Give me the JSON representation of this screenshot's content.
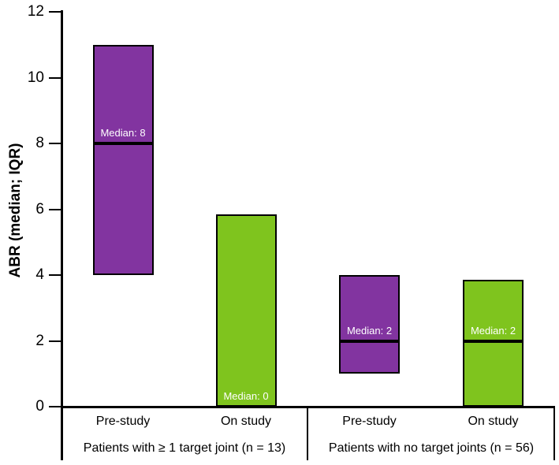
{
  "chart_data": {
    "type": "bar",
    "subtype": "floating-bar-median-iqr",
    "title": "",
    "xlabel": "",
    "ylabel": "ABR (median; IQR)",
    "ylim": [
      0,
      12
    ],
    "yticks": [
      0,
      2,
      4,
      6,
      8,
      10,
      12
    ],
    "grid": false,
    "legend_position": "none",
    "colors": {
      "purple": "#8234A0",
      "green": "#7FC41E",
      "axis": "#000000",
      "median_line": "#000000",
      "median_label_text": "#ffffff"
    },
    "groups": [
      {
        "label": "Patients with ≥ 1 target joint (n = 13)",
        "n": 13,
        "bars": [
          {
            "category": "Pre-study",
            "color": "purple",
            "q1": 4,
            "median": 8,
            "q3": 11,
            "median_label": "Median: 8"
          },
          {
            "category": "On study",
            "color": "green",
            "q1": 0,
            "median": 0,
            "q3": 5.85,
            "median_label": "Median: 0"
          }
        ]
      },
      {
        "label": "Patients with no target joints (n = 56)",
        "n": 56,
        "bars": [
          {
            "category": "Pre-study",
            "color": "purple",
            "q1": 1,
            "median": 2,
            "q3": 4,
            "median_label": "Median: 2"
          },
          {
            "category": "On study",
            "color": "green",
            "q1": 0,
            "median": 2,
            "q3": 3.85,
            "median_label": "Median: 2"
          }
        ]
      }
    ]
  }
}
